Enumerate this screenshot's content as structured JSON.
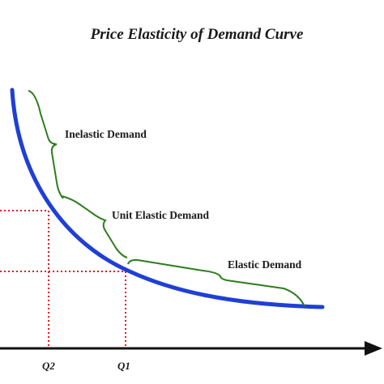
{
  "title": "Price Elasticity of Demand Curve",
  "regions": {
    "inelastic": "Inelastic Demand",
    "unit_elastic": "Unit Elastic Demand",
    "elastic": "Elastic Demand"
  },
  "quantity_labels": {
    "q1": "Q1",
    "q2": "Q2"
  },
  "colors": {
    "curve": "#1f3fd6",
    "brace": "#2e7d1f",
    "guide": "#e01b24",
    "axis": "#111111",
    "text": "#1a1a1a"
  }
}
